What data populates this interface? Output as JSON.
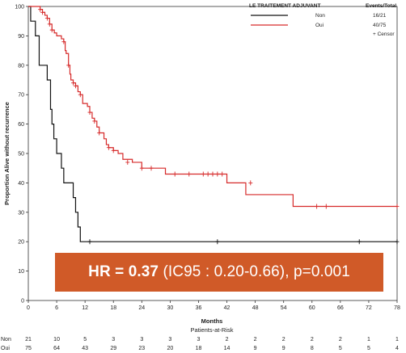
{
  "chart_data": {
    "type": "line",
    "title": "",
    "xlabel": "Months",
    "ylabel": "Proportion Alive without recurrence",
    "xlim": [
      0,
      78
    ],
    "ylim": [
      0,
      100
    ],
    "xticks": [
      0,
      6,
      12,
      18,
      24,
      30,
      36,
      42,
      48,
      54,
      60,
      66,
      72,
      78
    ],
    "yticks": [
      0,
      10,
      20,
      30,
      40,
      50,
      60,
      70,
      80,
      90,
      100
    ],
    "grid": false,
    "legend": {
      "title": "LE TRAITEMENT ADJUVANT",
      "stats_header": "Events/Total",
      "placement": "top-right",
      "censor_label": "+ Censor",
      "entries": [
        {
          "name": "Non",
          "stat": "16/21",
          "color": "#111111"
        },
        {
          "name": "Oui",
          "stat": "40/75",
          "color": "#d62a2a"
        }
      ]
    },
    "series": [
      {
        "name": "Non",
        "color": "#111111",
        "steps": [
          [
            0,
            100
          ],
          [
            0.5,
            95
          ],
          [
            1.5,
            90
          ],
          [
            2.3,
            80
          ],
          [
            4,
            75
          ],
          [
            4.7,
            65
          ],
          [
            5,
            60
          ],
          [
            5.4,
            55
          ],
          [
            6,
            50
          ],
          [
            7,
            45
          ],
          [
            7.5,
            40
          ],
          [
            9.5,
            35
          ],
          [
            10,
            30
          ],
          [
            10.5,
            25
          ],
          [
            11,
            20
          ],
          [
            78,
            20
          ]
        ],
        "censors": [
          [
            13,
            20
          ],
          [
            40,
            20
          ],
          [
            70,
            20
          ],
          [
            78,
            20
          ]
        ]
      },
      {
        "name": "Oui",
        "color": "#d62a2a",
        "steps": [
          [
            0,
            100
          ],
          [
            2.5,
            99
          ],
          [
            3,
            98
          ],
          [
            3.5,
            97
          ],
          [
            4,
            96
          ],
          [
            4.5,
            94
          ],
          [
            5,
            92
          ],
          [
            5.5,
            91
          ],
          [
            6,
            90
          ],
          [
            7,
            89
          ],
          [
            7.5,
            88
          ],
          [
            7.8,
            85
          ],
          [
            8,
            84
          ],
          [
            8.5,
            80
          ],
          [
            8.8,
            77
          ],
          [
            9,
            75
          ],
          [
            9.5,
            74
          ],
          [
            10,
            73
          ],
          [
            10.5,
            71
          ],
          [
            11,
            70
          ],
          [
            11.5,
            67
          ],
          [
            12.5,
            66
          ],
          [
            13,
            64
          ],
          [
            13.5,
            62
          ],
          [
            14,
            61
          ],
          [
            14.5,
            59
          ],
          [
            15,
            57
          ],
          [
            16,
            55
          ],
          [
            16.5,
            53
          ],
          [
            17,
            52
          ],
          [
            18,
            51
          ],
          [
            19,
            50
          ],
          [
            20,
            48
          ],
          [
            22,
            47
          ],
          [
            24,
            45
          ],
          [
            29,
            43
          ],
          [
            42,
            40
          ],
          [
            46,
            36
          ],
          [
            56,
            32
          ],
          [
            78,
            32
          ]
        ],
        "censors": [
          [
            2.5,
            99
          ],
          [
            3,
            98
          ],
          [
            4,
            96
          ],
          [
            4.5,
            94
          ],
          [
            5,
            92
          ],
          [
            7.5,
            88
          ],
          [
            8.5,
            80
          ],
          [
            9.5,
            74
          ],
          [
            10,
            73
          ],
          [
            11,
            70
          ],
          [
            13,
            64
          ],
          [
            14,
            61
          ],
          [
            15,
            57
          ],
          [
            17,
            52
          ],
          [
            18,
            51
          ],
          [
            21,
            47
          ],
          [
            24,
            45
          ],
          [
            26,
            45
          ],
          [
            31,
            43
          ],
          [
            34,
            43
          ],
          [
            37,
            43
          ],
          [
            38,
            43
          ],
          [
            39,
            43
          ],
          [
            40,
            43
          ],
          [
            41,
            43
          ],
          [
            47,
            40
          ],
          [
            61,
            32
          ],
          [
            63,
            32
          ],
          [
            78,
            32
          ]
        ]
      }
    ],
    "annotation": {
      "bold": "HR = 0.37",
      "rest": " (IC95 : 0.20-0.66), p=0.001"
    },
    "risk_table": {
      "title": "Patients-at-Risk",
      "rows": [
        {
          "label": "Non",
          "values": [
            "21",
            "10",
            "5",
            "3",
            "3",
            "3",
            "3",
            "2",
            "2",
            "2",
            "2",
            "2",
            "1",
            "1"
          ]
        },
        {
          "label": "Oui",
          "values": [
            "75",
            "64",
            "43",
            "29",
            "23",
            "20",
            "18",
            "14",
            "9",
            "9",
            "8",
            "5",
            "5",
            "4"
          ]
        }
      ]
    }
  }
}
